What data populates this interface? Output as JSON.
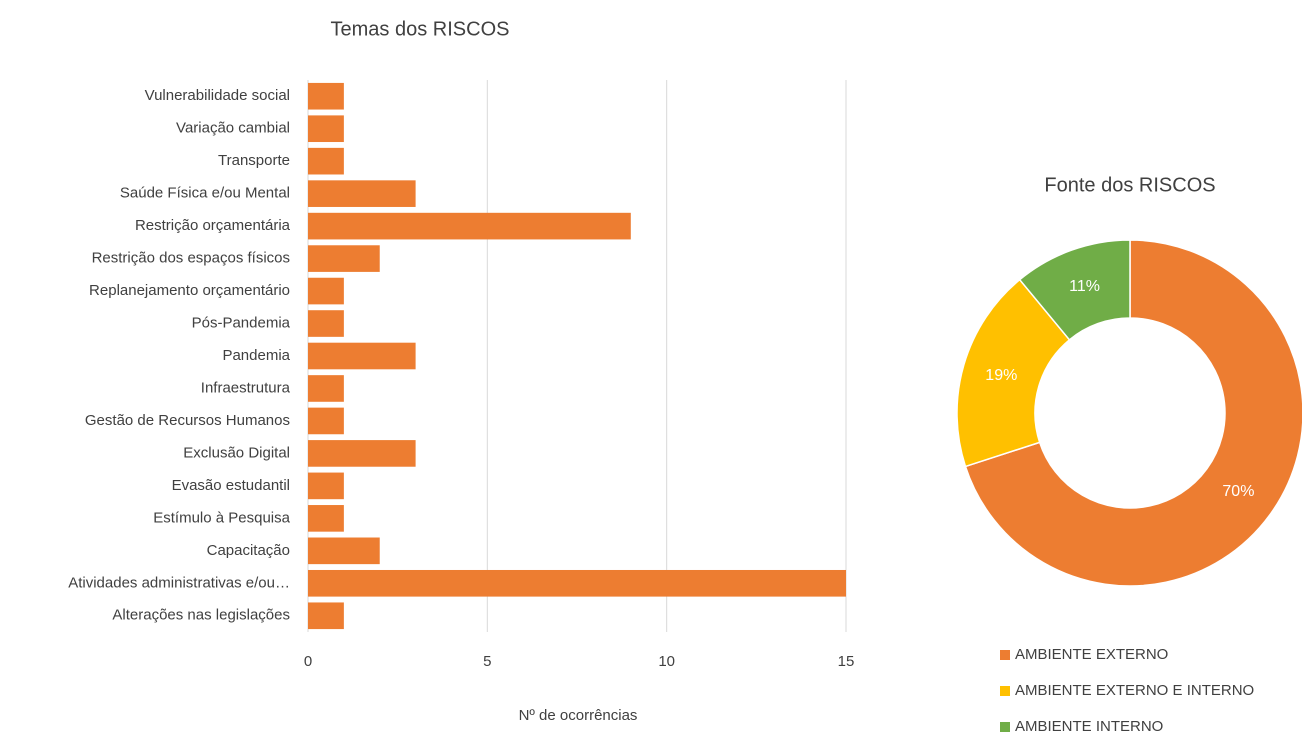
{
  "chart_data": [
    {
      "type": "bar",
      "orientation": "horizontal",
      "title": "Temas dos RISCOS",
      "x_label": "Nº de ocorrências",
      "categories": [
        "Vulnerabilidade social",
        "Variação cambial",
        "Transporte",
        "Saúde Física e/ou Mental",
        "Restrição orçamentária",
        "Restrição dos espaços físicos",
        "Replanejamento orçamentário",
        "Pós-Pandemia",
        "Pandemia",
        "Infraestrutura",
        "Gestão de Recursos Humanos",
        "Exclusão Digital",
        "Evasão estudantil",
        "Estímulo à Pesquisa",
        "Capacitação",
        "Atividades administrativas e/ou…",
        "Alterações nas legislações"
      ],
      "values": [
        1,
        1,
        1,
        3,
        9,
        2,
        1,
        1,
        3,
        1,
        1,
        3,
        1,
        1,
        2,
        15,
        1
      ],
      "color": "#ED7D31",
      "xlim": [
        0,
        15
      ],
      "xticks": [
        0,
        5,
        10,
        15
      ],
      "grid": true
    },
    {
      "type": "donut",
      "title": "Fonte dos RISCOS",
      "categories": [
        "AMBIENTE EXTERNO",
        "AMBIENTE EXTERNO E INTERNO",
        "AMBIENTE INTERNO"
      ],
      "values": [
        70,
        19,
        11
      ],
      "value_labels": [
        "70%",
        "19%",
        "11%"
      ],
      "colors": [
        "#ED7D31",
        "#FFC000",
        "#70AD47"
      ],
      "legend": "bottom"
    }
  ]
}
